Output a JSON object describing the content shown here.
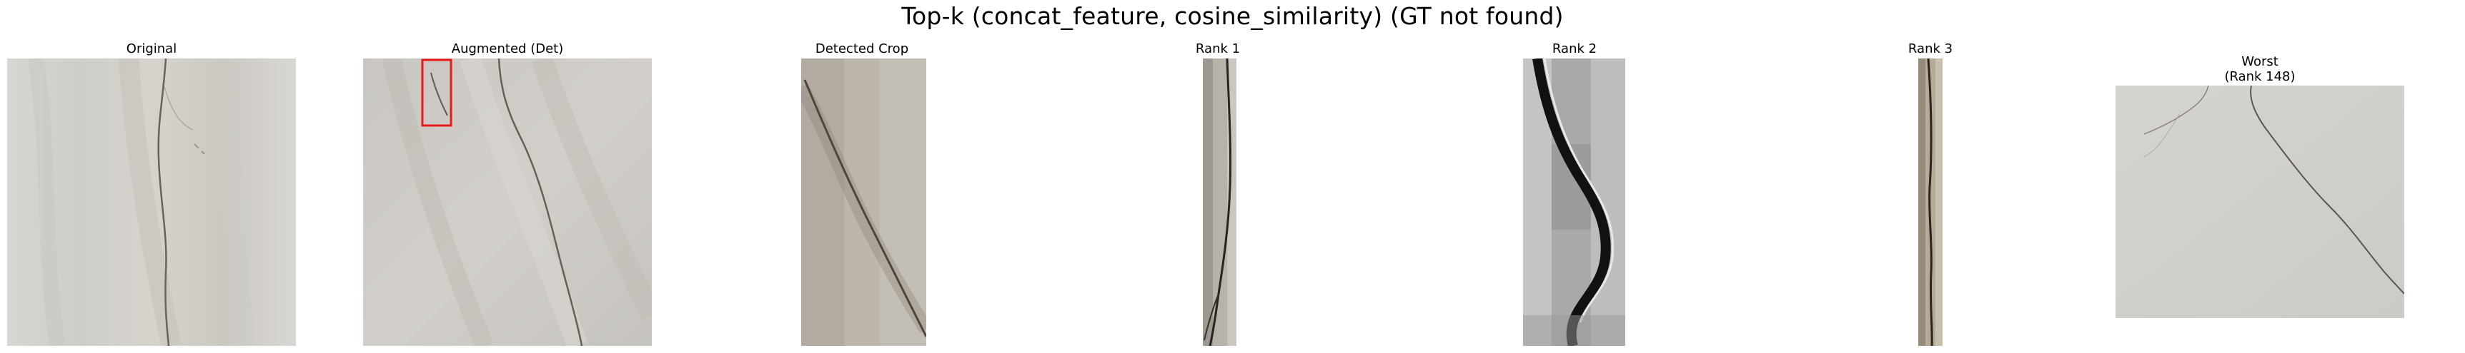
{
  "figure": {
    "title": "Top-k (concat_feature, cosine_similarity) (GT not found)"
  },
  "panels": [
    {
      "id": "original",
      "title": "Original"
    },
    {
      "id": "augmented",
      "title": "Augmented (Det)"
    },
    {
      "id": "detected",
      "title": "Detected Crop"
    },
    {
      "id": "rank1",
      "title": "Rank 1"
    },
    {
      "id": "rank2",
      "title": "Rank 2"
    },
    {
      "id": "rank3",
      "title": "Rank 3"
    },
    {
      "id": "worst",
      "title": "Worst\n(Rank 148)"
    }
  ],
  "colors": {
    "detection_box": "#e8191b",
    "concrete_light": "#d9d6d1",
    "concrete_mid": "#c2bfb9",
    "crack": "#5a5048"
  }
}
